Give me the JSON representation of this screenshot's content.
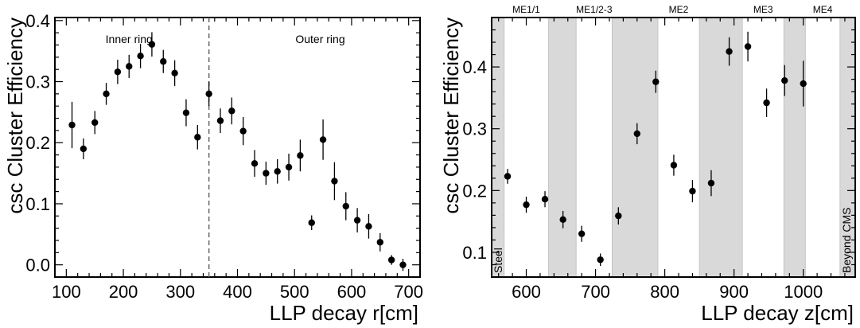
{
  "chart_data": [
    {
      "type": "scatter",
      "xlabel": "LLP decay r[cm]",
      "ylabel": "csc Cluster Efficiency",
      "xlim": [
        80,
        720
      ],
      "ylim": [
        -0.02,
        0.405
      ],
      "xticks": [
        100,
        200,
        300,
        400,
        500,
        600,
        700
      ],
      "yticks": [
        0.0,
        0.1,
        0.2,
        0.3,
        0.4
      ],
      "ytick_labels": [
        "0.0",
        "0.1",
        "0.2",
        "0.3",
        "0.4"
      ],
      "grid": false,
      "annotations": {
        "inner_label": "Inner ring",
        "outer_label": "Outer ring",
        "boundary_x": 350
      },
      "series": [
        {
          "x": [
            110,
            130,
            150,
            170,
            190,
            210,
            230,
            250,
            270,
            290,
            310,
            330,
            350,
            370,
            390,
            410,
            430,
            450,
            470,
            490,
            510,
            530,
            550,
            570,
            590,
            610,
            630,
            650,
            670,
            690
          ],
          "y": [
            0.229,
            0.19,
            0.233,
            0.28,
            0.316,
            0.325,
            0.342,
            0.361,
            0.333,
            0.314,
            0.249,
            0.209,
            0.28,
            0.236,
            0.252,
            0.219,
            0.166,
            0.15,
            0.153,
            0.16,
            0.179,
            0.069,
            0.205,
            0.137,
            0.096,
            0.073,
            0.063,
            0.037,
            0.008,
            0.0
          ],
          "err": [
            0.038,
            0.017,
            0.019,
            0.018,
            0.02,
            0.019,
            0.02,
            0.02,
            0.019,
            0.021,
            0.022,
            0.02,
            0.02,
            0.02,
            0.022,
            0.023,
            0.022,
            0.019,
            0.02,
            0.022,
            0.026,
            0.012,
            0.033,
            0.031,
            0.023,
            0.02,
            0.02,
            0.015,
            0.008,
            0.01
          ]
        }
      ]
    },
    {
      "type": "scatter",
      "xlabel": "LLP decay z[cm]",
      "ylabel": "csc Cluster Efficiency",
      "xlim": [
        550,
        1075
      ],
      "ylim": [
        0.06,
        0.48
      ],
      "xticks": [
        600,
        700,
        800,
        900,
        1000
      ],
      "yticks": [
        0.1,
        0.2,
        0.3,
        0.4
      ],
      "ytick_labels": [
        "0.1",
        "0.2",
        "0.3",
        "0.4"
      ],
      "grid": false,
      "shaded_regions": [
        {
          "x": [
            550,
            568
          ],
          "label": "Steel"
        },
        {
          "x": [
            632,
            672
          ],
          "label": ""
        },
        {
          "x": [
            724,
            790
          ],
          "label": ""
        },
        {
          "x": [
            850,
            912
          ],
          "label": ""
        },
        {
          "x": [
            972,
            1003
          ],
          "label": ""
        },
        {
          "x": [
            1053,
            1075
          ],
          "label": "Beyond CMS"
        }
      ],
      "stations": [
        {
          "x": 600,
          "label": "ME1/1"
        },
        {
          "x": 698,
          "label": "ME1/2-3"
        },
        {
          "x": 820,
          "label": "ME2"
        },
        {
          "x": 942,
          "label": "ME3"
        },
        {
          "x": 1028,
          "label": "ME4"
        }
      ],
      "series": [
        {
          "x": [
            573,
            600,
            627,
            653,
            680,
            707,
            733,
            760,
            787,
            813,
            840,
            867,
            893,
            920,
            947,
            973,
            1000
          ],
          "y": [
            0.223,
            0.177,
            0.186,
            0.153,
            0.13,
            0.088,
            0.159,
            0.292,
            0.376,
            0.241,
            0.199,
            0.212,
            0.425,
            0.433,
            0.342,
            0.378,
            0.373
          ],
          "err": [
            0.012,
            0.013,
            0.013,
            0.014,
            0.013,
            0.01,
            0.014,
            0.017,
            0.018,
            0.017,
            0.018,
            0.021,
            0.023,
            0.024,
            0.023,
            0.025,
            0.037
          ]
        }
      ]
    }
  ]
}
